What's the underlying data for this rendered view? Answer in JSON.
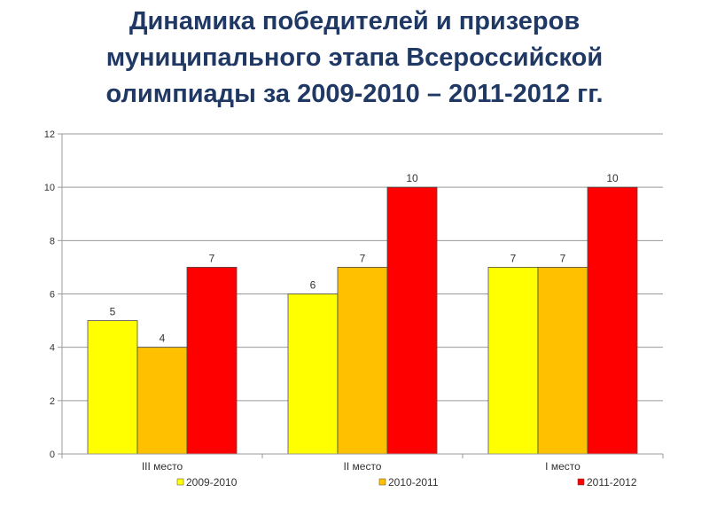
{
  "title_lines": [
    "Динамика победителей и призеров",
    "муниципального этапа Всероссийской",
    "олимпиады  за 2009-2010 – 2011-2012 гг."
  ],
  "chart_data": {
    "type": "bar",
    "title": "Динамика победителей и призеров муниципального этапа Всероссийской олимпиады  за 2009-2010 – 2011-2012 гг.",
    "categories": [
      "III место",
      "II место",
      "I место"
    ],
    "series": [
      {
        "name": "2009-2010",
        "values": [
          5,
          6,
          7
        ],
        "color": "#ffff00"
      },
      {
        "name": "2010-2011",
        "values": [
          4,
          7,
          7
        ],
        "color": "#ffc000"
      },
      {
        "name": "2011-2012",
        "values": [
          7,
          10,
          10
        ],
        "color": "#ff0000"
      }
    ],
    "y_ticks": [
      "0",
      "2",
      "4",
      "6",
      "8",
      "10",
      "12"
    ],
    "ylim": [
      0,
      12
    ],
    "y_step": 2,
    "grid": true,
    "data_labels": true,
    "legend_position": "bottom",
    "colors": {
      "grid": "#9a9a9a",
      "bar_border": "#4d4d4d",
      "label": "#333333",
      "title": "#1f3864"
    }
  }
}
